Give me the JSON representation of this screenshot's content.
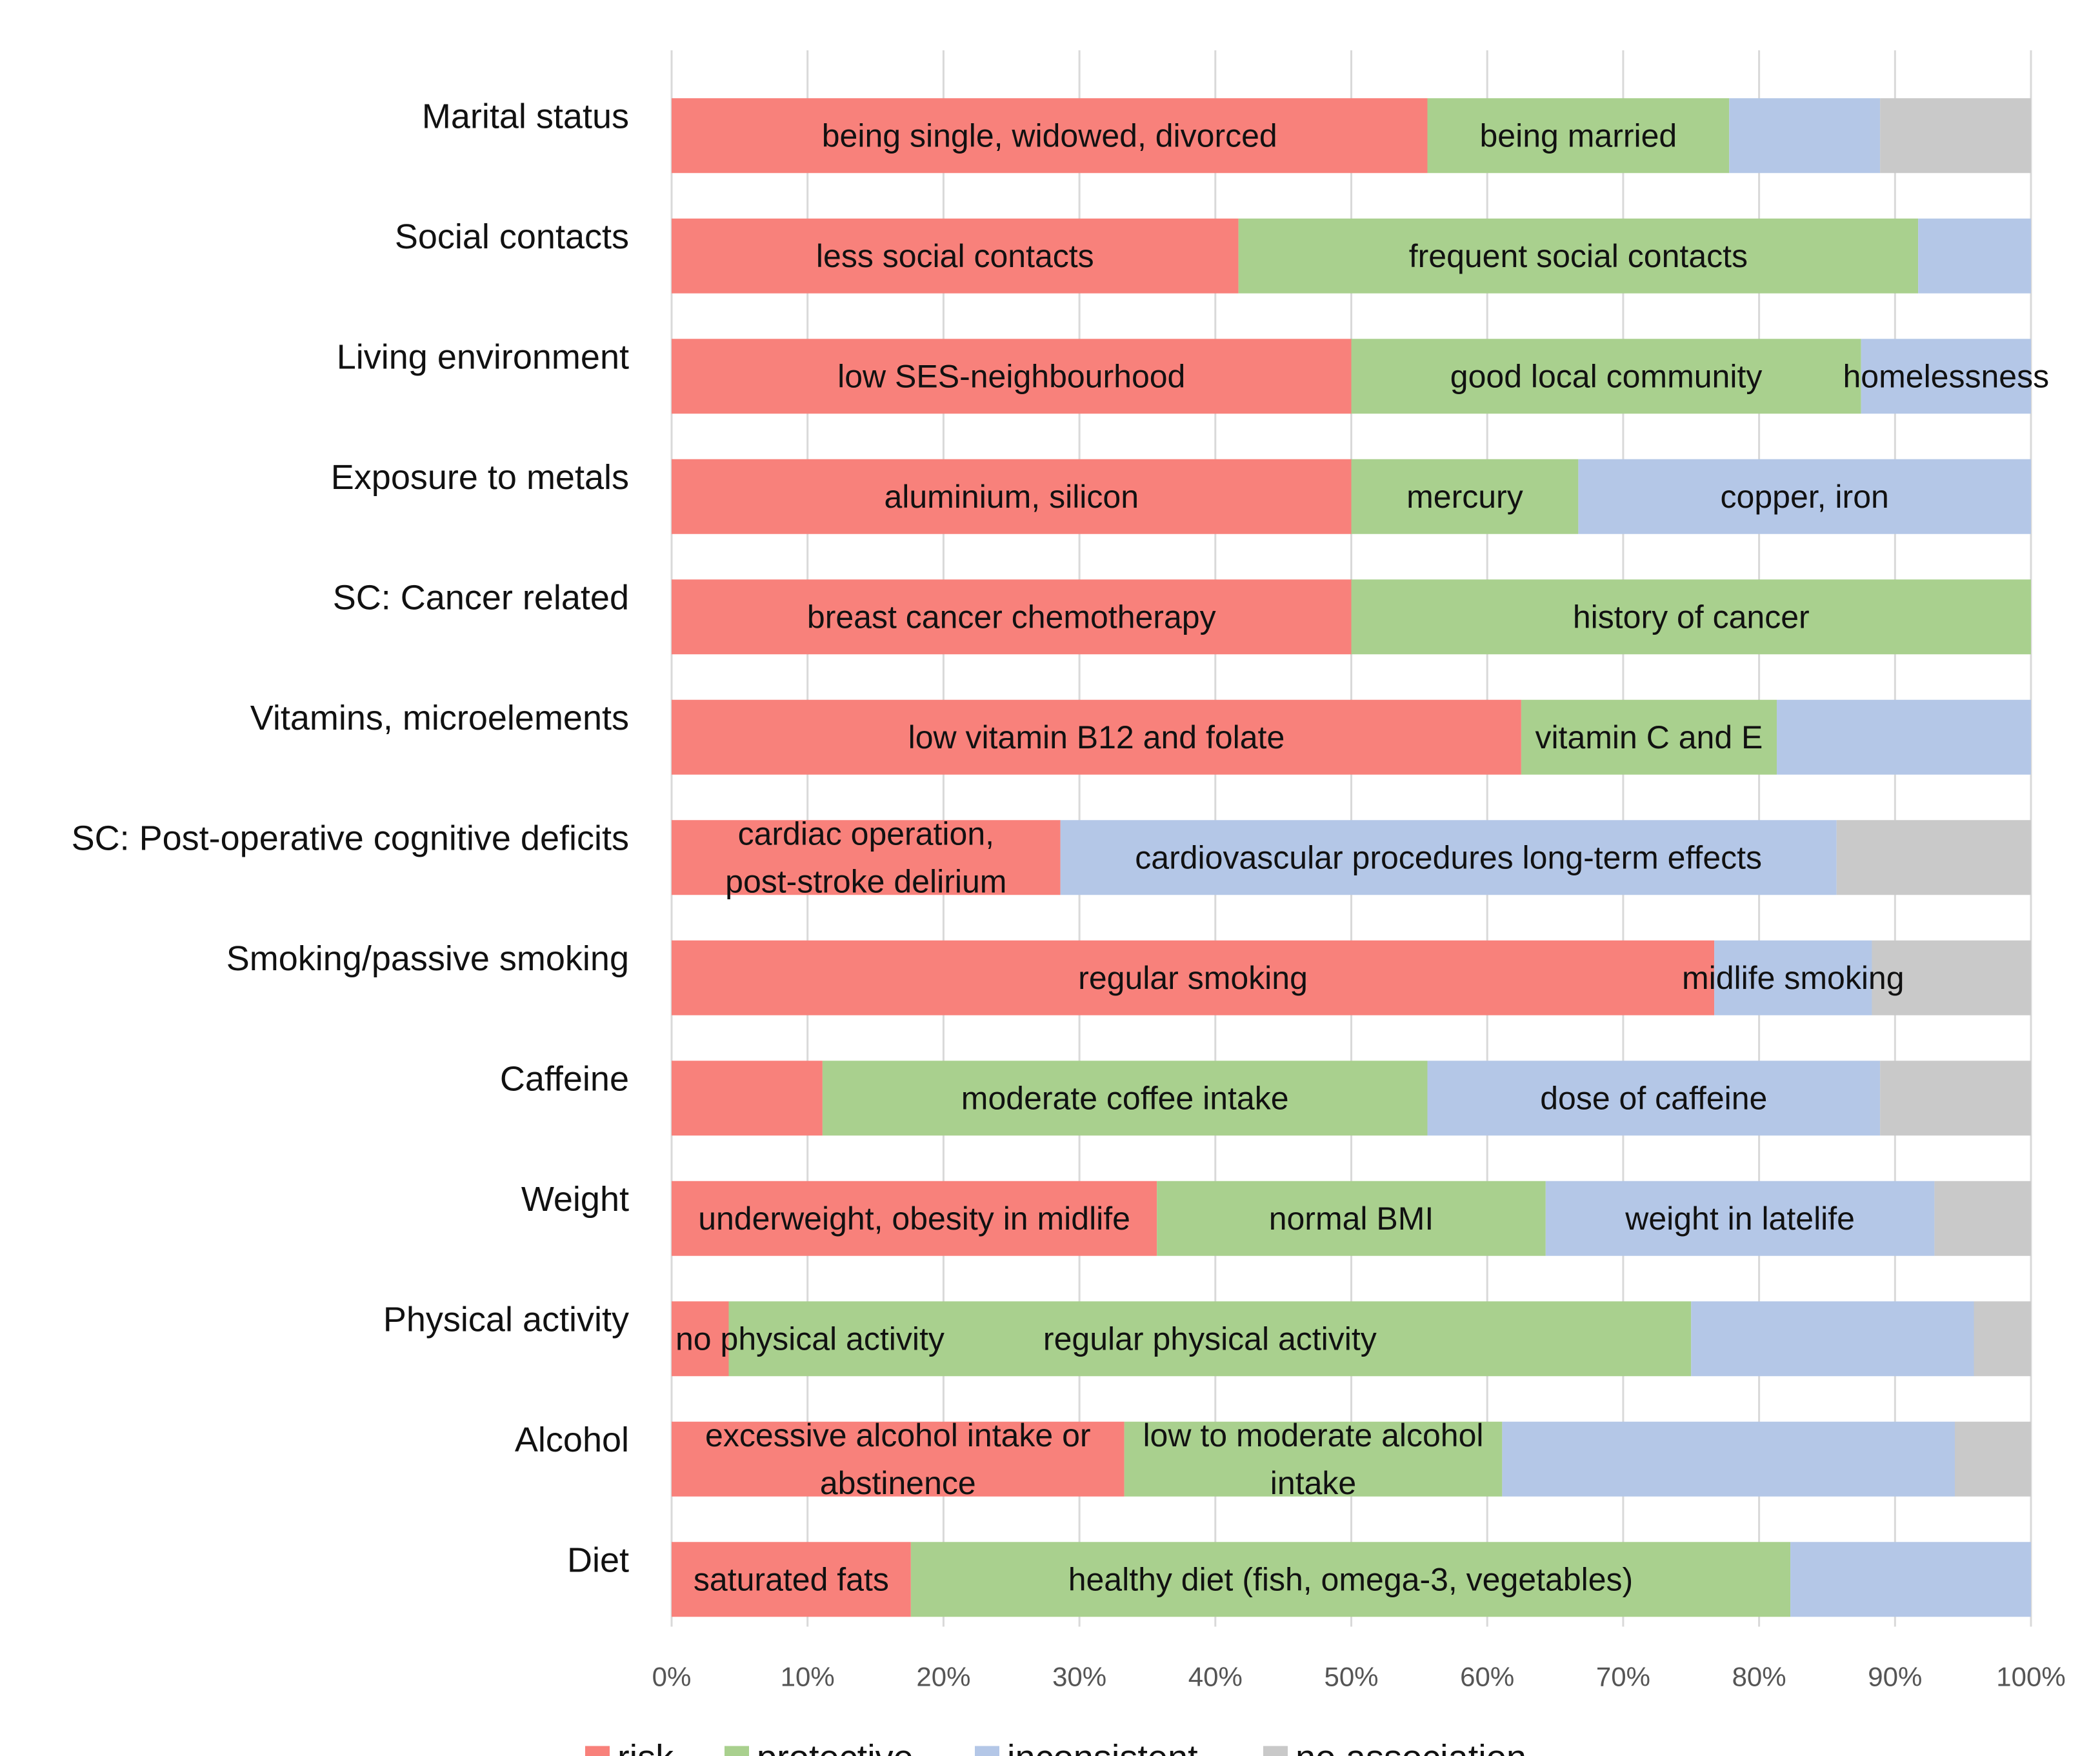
{
  "chart_data": {
    "type": "bar",
    "orientation": "horizontal",
    "stacked": "percent",
    "xlim": [
      0,
      100
    ],
    "ticks": [
      "0%",
      "10%",
      "20%",
      "30%",
      "40%",
      "50%",
      "60%",
      "70%",
      "80%",
      "90%",
      "100%"
    ],
    "grid": true,
    "legend_position": "bottom",
    "colors": {
      "risk": "#f8817b",
      "protective": "#a9d08e",
      "inconsistent": "#b4c7e7",
      "no association": "#c9c9c9"
    },
    "legend": [
      {
        "key": "risk",
        "label": "risk"
      },
      {
        "key": "protective",
        "label": "protective"
      },
      {
        "key": "inconsistent",
        "label": "inconsistent"
      },
      {
        "key": "no association",
        "label": "no association"
      }
    ],
    "categories": [
      {
        "label": "Marital status",
        "segments": [
          {
            "type": "risk",
            "value": 55.6,
            "text": [
              "being single, widowed, divorced"
            ]
          },
          {
            "type": "protective",
            "value": 22.2,
            "text": [
              "being married"
            ]
          },
          {
            "type": "inconsistent",
            "value": 11.1,
            "text": []
          },
          {
            "type": "no association",
            "value": 11.1,
            "text": []
          }
        ]
      },
      {
        "label": "Social contacts",
        "segments": [
          {
            "type": "risk",
            "value": 41.7,
            "text": [
              "less social contacts"
            ]
          },
          {
            "type": "protective",
            "value": 50.0,
            "text": [
              "frequent social contacts"
            ]
          },
          {
            "type": "inconsistent",
            "value": 8.3,
            "text": []
          }
        ]
      },
      {
        "label": "Living environment",
        "segments": [
          {
            "type": "risk",
            "value": 50.0,
            "text": [
              "low SES-neighbourhood"
            ]
          },
          {
            "type": "protective",
            "value": 37.5,
            "text": [
              "good local community"
            ]
          },
          {
            "type": "inconsistent",
            "value": 12.5,
            "text": [
              "homelessness"
            ]
          }
        ]
      },
      {
        "label": "Exposure to metals",
        "segments": [
          {
            "type": "risk",
            "value": 50.0,
            "text": [
              "aluminium, silicon"
            ]
          },
          {
            "type": "protective",
            "value": 16.7,
            "text": [
              "mercury"
            ]
          },
          {
            "type": "inconsistent",
            "value": 33.3,
            "text": [
              "copper, iron"
            ]
          }
        ]
      },
      {
        "label": "SC: Cancer related",
        "segments": [
          {
            "type": "risk",
            "value": 50.0,
            "text": [
              "breast cancer chemotherapy"
            ]
          },
          {
            "type": "protective",
            "value": 50.0,
            "text": [
              "history of cancer"
            ]
          }
        ]
      },
      {
        "label": "Vitamins, microelements",
        "segments": [
          {
            "type": "risk",
            "value": 62.5,
            "text": [
              "low vitamin B12 and folate"
            ]
          },
          {
            "type": "protective",
            "value": 18.8,
            "text": [
              "vitamin C and E"
            ]
          },
          {
            "type": "inconsistent",
            "value": 18.7,
            "text": []
          }
        ]
      },
      {
        "label": "SC: Post-operative cognitive deficits",
        "segments": [
          {
            "type": "risk",
            "value": 28.6,
            "text": [
              "cardiac operation,",
              "post-stroke delirium"
            ]
          },
          {
            "type": "inconsistent",
            "value": 57.1,
            "text": [
              "cardiovascular procedures long-term effects"
            ]
          },
          {
            "type": "no association",
            "value": 14.3,
            "text": []
          }
        ]
      },
      {
        "label": "Smoking/passive smoking",
        "segments": [
          {
            "type": "risk",
            "value": 76.7,
            "text": [
              "regular smoking"
            ]
          },
          {
            "type": "inconsistent",
            "value": 11.6,
            "text": [
              "midlife smoking"
            ]
          },
          {
            "type": "no association",
            "value": 11.7,
            "text": []
          }
        ]
      },
      {
        "label": "Caffeine",
        "segments": [
          {
            "type": "risk",
            "value": 11.1,
            "text": []
          },
          {
            "type": "protective",
            "value": 44.5,
            "text": [
              "moderate coffee intake"
            ]
          },
          {
            "type": "inconsistent",
            "value": 33.3,
            "text": [
              "dose of caffeine"
            ]
          },
          {
            "type": "no association",
            "value": 11.1,
            "text": []
          }
        ]
      },
      {
        "label": "Weight",
        "segments": [
          {
            "type": "risk",
            "value": 35.7,
            "text": [
              "underweight, obesity in midlife"
            ]
          },
          {
            "type": "protective",
            "value": 28.6,
            "text": [
              "normal BMI"
            ]
          },
          {
            "type": "inconsistent",
            "value": 28.6,
            "text": [
              "weight in latelife"
            ]
          },
          {
            "type": "no association",
            "value": 7.1,
            "text": []
          }
        ]
      },
      {
        "label": "Physical activity",
        "segments": [
          {
            "type": "risk",
            "value": 4.2,
            "text": [
              "no physical activity"
            ],
            "text_anchor": "start"
          },
          {
            "type": "protective",
            "value": 70.8,
            "text": [
              "regular physical activity"
            ]
          },
          {
            "type": "inconsistent",
            "value": 20.8,
            "text": []
          },
          {
            "type": "no association",
            "value": 4.2,
            "text": []
          }
        ]
      },
      {
        "label": "Alcohol",
        "segments": [
          {
            "type": "risk",
            "value": 33.3,
            "text": [
              "excessive alcohol intake or",
              "abstinence"
            ]
          },
          {
            "type": "protective",
            "value": 27.8,
            "text": [
              "low to moderate alcohol",
              "intake"
            ]
          },
          {
            "type": "inconsistent",
            "value": 33.3,
            "text": []
          },
          {
            "type": "no association",
            "value": 5.6,
            "text": []
          }
        ]
      },
      {
        "label": "Diet",
        "segments": [
          {
            "type": "risk",
            "value": 17.6,
            "text": [
              "saturated fats"
            ]
          },
          {
            "type": "protective",
            "value": 64.7,
            "text": [
              "healthy diet (fish, omega-3, vegetables)"
            ]
          },
          {
            "type": "inconsistent",
            "value": 17.7,
            "text": []
          }
        ]
      }
    ]
  }
}
